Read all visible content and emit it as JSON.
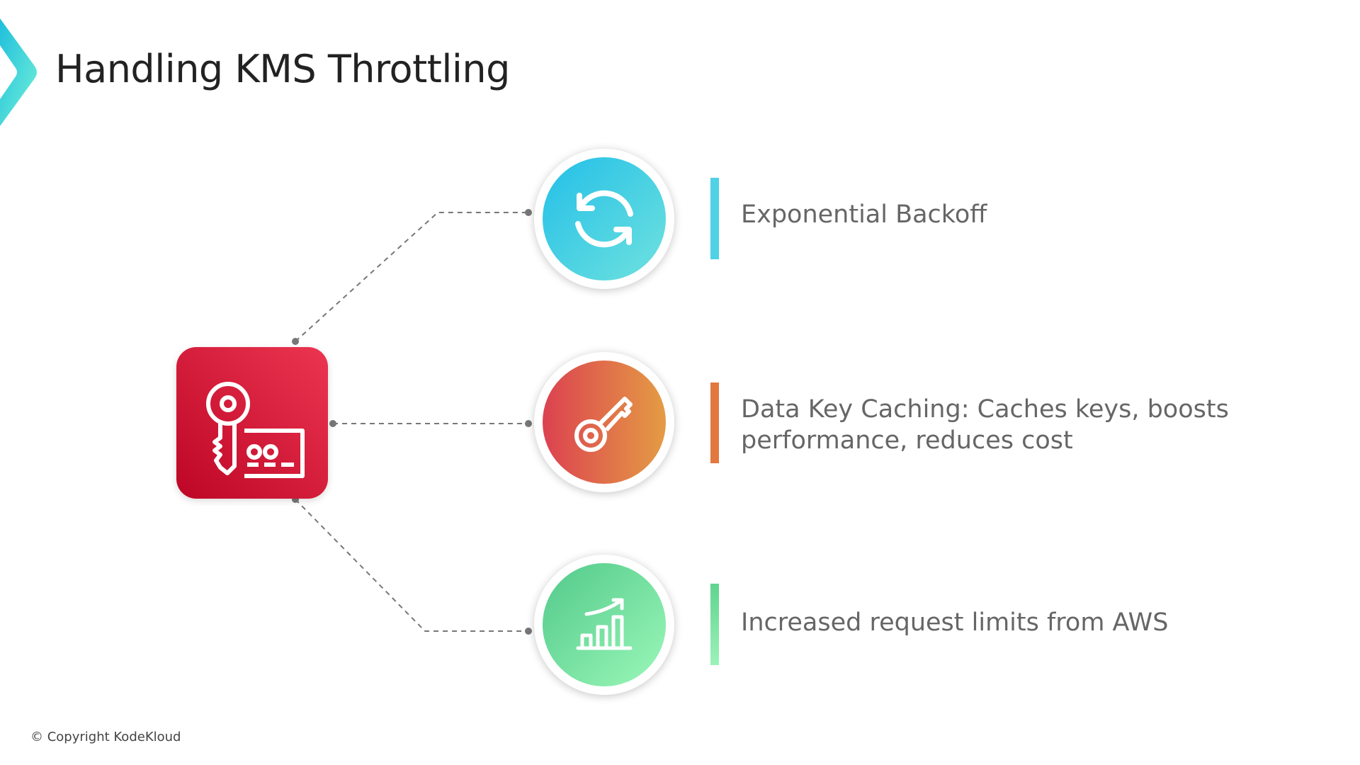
{
  "title": "Handling KMS Throttling",
  "center_icon": "aws-kms-key-icon",
  "items": [
    {
      "icon": "refresh-cycle-icon",
      "text": "Exponential Backoff",
      "color": "#4fd1e6"
    },
    {
      "icon": "key-icon",
      "text_lines": [
        "Data Key Caching: Caches keys, boosts",
        "performance, reduces cost"
      ],
      "color": "#e2773f"
    },
    {
      "icon": "bar-chart-growth-icon",
      "text": "Increased request limits from AWS",
      "color": "#6fdc99"
    }
  ],
  "footer": {
    "copyright": "© Copyright KodeKloud"
  },
  "colors": {
    "kms_red": "#d81b3c",
    "title": "#222222",
    "text": "#666666"
  }
}
